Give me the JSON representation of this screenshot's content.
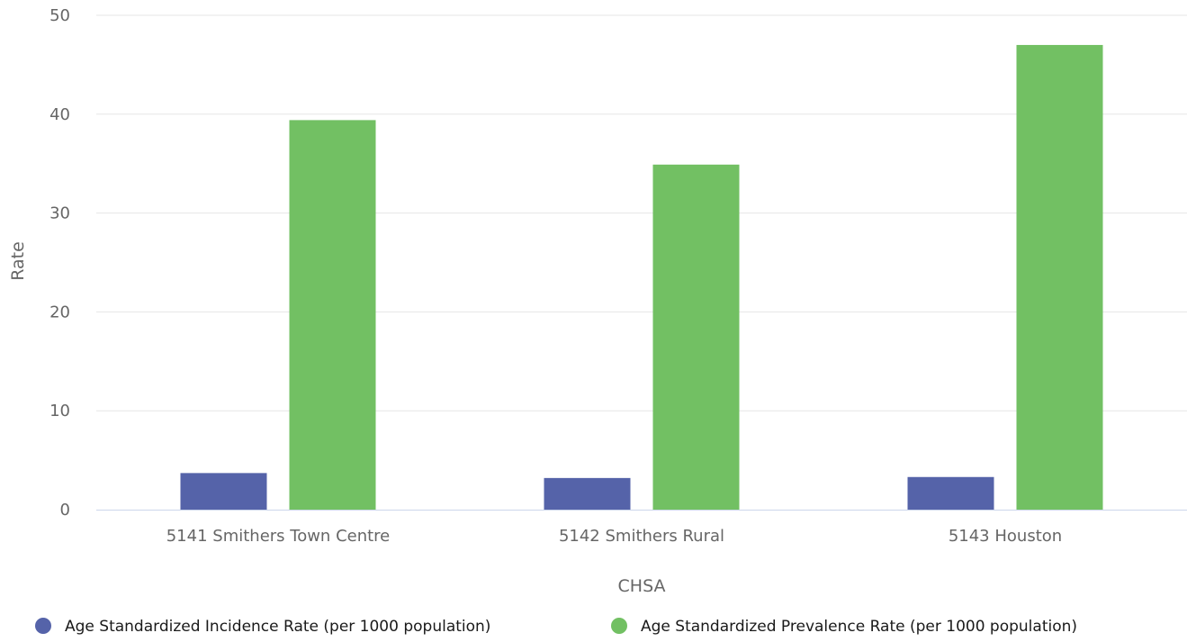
{
  "chart_data": {
    "type": "bar",
    "title": "",
    "xlabel": "CHSA",
    "ylabel": "Rate",
    "ylim": [
      0,
      50
    ],
    "yticks": [
      "0",
      "10",
      "20",
      "30",
      "40",
      "50"
    ],
    "grid": true,
    "legend_position": "bottom",
    "categories": [
      "5141 Smithers Town Centre",
      "5142 Smithers Rural",
      "5143 Houston"
    ],
    "series": [
      {
        "name": "Age Standardized Incidence Rate (per 1000 population)",
        "color": "#5563a9",
        "values": [
          3.7,
          3.2,
          3.3
        ]
      },
      {
        "name": "Age Standardized Prevalence Rate (per 1000 population)",
        "color": "#72c063",
        "values": [
          39.4,
          34.9,
          47.0
        ]
      }
    ]
  }
}
